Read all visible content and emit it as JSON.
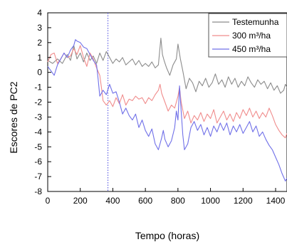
{
  "chart_data": {
    "type": "line",
    "title": "",
    "xlabel": "Tempo (horas)",
    "ylabel": "Escores de PC2",
    "xlim": [
      0,
      1470
    ],
    "ylim": [
      -8,
      4
    ],
    "x_ticks": [
      0,
      200,
      400,
      600,
      800,
      1000,
      1200,
      1400
    ],
    "y_ticks": [
      4,
      3,
      2,
      1,
      0,
      -1,
      -2,
      -3,
      -4,
      -5,
      -6,
      -7,
      -8
    ],
    "grid": false,
    "legend_position": "top-right",
    "vertical_reference_line": {
      "x": 370,
      "color": "#4a4ae0",
      "style": "dotted"
    },
    "series": [
      {
        "name": "Testemunha",
        "color": "#8c8c8c",
        "points": [
          [
            0,
            0.8
          ],
          [
            30,
            0.6
          ],
          [
            60,
            0.9
          ],
          [
            90,
            0.6
          ],
          [
            120,
            1.2
          ],
          [
            140,
            0.8
          ],
          [
            160,
            1.8
          ],
          [
            180,
            0.9
          ],
          [
            200,
            1.3
          ],
          [
            220,
            0.7
          ],
          [
            240,
            1.3
          ],
          [
            260,
            0.8
          ],
          [
            280,
            1.1
          ],
          [
            300,
            0.6
          ],
          [
            320,
            1.3
          ],
          [
            340,
            0.8
          ],
          [
            360,
            1.4
          ],
          [
            380,
            1.0
          ],
          [
            400,
            0.6
          ],
          [
            420,
            0.9
          ],
          [
            440,
            0.7
          ],
          [
            460,
            1.0
          ],
          [
            480,
            0.5
          ],
          [
            500,
            0.7
          ],
          [
            520,
            0.9
          ],
          [
            540,
            0.5
          ],
          [
            560,
            0.8
          ],
          [
            580,
            0.4
          ],
          [
            600,
            0.6
          ],
          [
            620,
            0.4
          ],
          [
            640,
            0.7
          ],
          [
            660,
            0.3
          ],
          [
            680,
            0.5
          ],
          [
            695,
            2.3
          ],
          [
            705,
            1.2
          ],
          [
            715,
            0.8
          ],
          [
            730,
            0.3
          ],
          [
            750,
            -0.2
          ],
          [
            770,
            0.5
          ],
          [
            790,
            0.9
          ],
          [
            800,
            1.9
          ],
          [
            815,
            0.9
          ],
          [
            830,
            0.1
          ],
          [
            850,
            -1.1
          ],
          [
            870,
            -0.4
          ],
          [
            890,
            -0.7
          ],
          [
            910,
            -1.3
          ],
          [
            930,
            -0.6
          ],
          [
            950,
            -0.9
          ],
          [
            970,
            -0.4
          ],
          [
            990,
            -1.0
          ],
          [
            1010,
            -0.7
          ],
          [
            1030,
            -0.1
          ],
          [
            1050,
            -0.8
          ],
          [
            1070,
            -0.5
          ],
          [
            1090,
            -1.0
          ],
          [
            1110,
            -0.3
          ],
          [
            1130,
            -0.8
          ],
          [
            1150,
            -0.4
          ],
          [
            1170,
            -1.0
          ],
          [
            1190,
            -0.6
          ],
          [
            1210,
            -0.9
          ],
          [
            1230,
            -0.3
          ],
          [
            1250,
            -0.7
          ],
          [
            1270,
            -1.0
          ],
          [
            1290,
            -0.5
          ],
          [
            1310,
            -0.8
          ],
          [
            1330,
            -0.6
          ],
          [
            1350,
            -1.1
          ],
          [
            1370,
            -0.7
          ],
          [
            1390,
            -1.2
          ],
          [
            1410,
            -0.9
          ],
          [
            1430,
            -1.4
          ],
          [
            1450,
            -1.2
          ],
          [
            1460,
            -0.8
          ],
          [
            1470,
            -1.0
          ]
        ]
      },
      {
        "name": "300 m³/ha",
        "color": "#f08c8c",
        "points": [
          [
            0,
            0.7
          ],
          [
            20,
            1.2
          ],
          [
            40,
            1.3
          ],
          [
            60,
            0.6
          ],
          [
            80,
            0.9
          ],
          [
            100,
            1.3
          ],
          [
            120,
            1.0
          ],
          [
            140,
            1.1
          ],
          [
            160,
            1.6
          ],
          [
            180,
            1.2
          ],
          [
            200,
            1.8
          ],
          [
            220,
            1.0
          ],
          [
            240,
            0.4
          ],
          [
            260,
            1.3
          ],
          [
            280,
            0.9
          ],
          [
            300,
            0.3
          ],
          [
            320,
            -0.2
          ],
          [
            330,
            -1.0
          ],
          [
            340,
            -1.9
          ],
          [
            360,
            -2.2
          ],
          [
            380,
            -1.9
          ],
          [
            400,
            -2.3
          ],
          [
            420,
            -1.7
          ],
          [
            440,
            -2.1
          ],
          [
            460,
            -1.5
          ],
          [
            480,
            -2.2
          ],
          [
            500,
            -1.8
          ],
          [
            520,
            -1.9
          ],
          [
            540,
            -1.6
          ],
          [
            560,
            -1.8
          ],
          [
            580,
            -1.7
          ],
          [
            600,
            -2.1
          ],
          [
            620,
            -1.7
          ],
          [
            640,
            -1.9
          ],
          [
            660,
            -1.5
          ],
          [
            680,
            -1.2
          ],
          [
            690,
            -0.8
          ],
          [
            700,
            -1.4
          ],
          [
            720,
            -2.0
          ],
          [
            740,
            -2.6
          ],
          [
            760,
            -2.2
          ],
          [
            780,
            -2.4
          ],
          [
            800,
            -1.6
          ],
          [
            810,
            -1.0
          ],
          [
            820,
            -2.0
          ],
          [
            840,
            -3.1
          ],
          [
            860,
            -2.6
          ],
          [
            880,
            -3.4
          ],
          [
            900,
            -2.9
          ],
          [
            920,
            -3.2
          ],
          [
            940,
            -2.7
          ],
          [
            960,
            -3.3
          ],
          [
            980,
            -2.8
          ],
          [
            1000,
            -3.1
          ],
          [
            1020,
            -2.5
          ],
          [
            1040,
            -3.4
          ],
          [
            1060,
            -3.0
          ],
          [
            1080,
            -2.6
          ],
          [
            1100,
            -3.2
          ],
          [
            1120,
            -2.8
          ],
          [
            1140,
            -3.3
          ],
          [
            1160,
            -2.7
          ],
          [
            1180,
            -3.1
          ],
          [
            1200,
            -2.5
          ],
          [
            1220,
            -2.9
          ],
          [
            1240,
            -2.4
          ],
          [
            1260,
            -3.0
          ],
          [
            1280,
            -2.6
          ],
          [
            1300,
            -3.1
          ],
          [
            1320,
            -2.7
          ],
          [
            1340,
            -3.0
          ],
          [
            1360,
            -2.4
          ],
          [
            1380,
            -2.9
          ],
          [
            1400,
            -3.5
          ],
          [
            1420,
            -3.9
          ],
          [
            1440,
            -4.2
          ],
          [
            1460,
            -4.4
          ],
          [
            1470,
            -4.1
          ]
        ]
      },
      {
        "name": "450 m³/ha",
        "color": "#7070e8",
        "points": [
          [
            0,
            0.4
          ],
          [
            20,
            0.1
          ],
          [
            40,
            -0.2
          ],
          [
            60,
            0.5
          ],
          [
            80,
            0.9
          ],
          [
            100,
            1.3
          ],
          [
            120,
            1.0
          ],
          [
            140,
            1.5
          ],
          [
            160,
            1.8
          ],
          [
            170,
            2.2
          ],
          [
            180,
            2.1
          ],
          [
            200,
            2.0
          ],
          [
            220,
            1.7
          ],
          [
            240,
            1.6
          ],
          [
            260,
            1.2
          ],
          [
            280,
            0.8
          ],
          [
            300,
            0.5
          ],
          [
            310,
            -0.5
          ],
          [
            320,
            -1.6
          ],
          [
            340,
            -1.2
          ],
          [
            360,
            -1.5
          ],
          [
            380,
            -0.8
          ],
          [
            400,
            -1.4
          ],
          [
            420,
            -1.3
          ],
          [
            440,
            -2.0
          ],
          [
            460,
            -2.8
          ],
          [
            480,
            -2.4
          ],
          [
            500,
            -2.9
          ],
          [
            520,
            -3.2
          ],
          [
            540,
            -2.8
          ],
          [
            560,
            -3.7
          ],
          [
            580,
            -3.2
          ],
          [
            600,
            -3.9
          ],
          [
            620,
            -4.3
          ],
          [
            640,
            -3.8
          ],
          [
            660,
            -4.8
          ],
          [
            680,
            -5.2
          ],
          [
            690,
            -4.8
          ],
          [
            700,
            -4.4
          ],
          [
            710,
            -3.9
          ],
          [
            720,
            -4.5
          ],
          [
            740,
            -5.0
          ],
          [
            760,
            -4.6
          ],
          [
            780,
            -3.7
          ],
          [
            790,
            -2.6
          ],
          [
            800,
            -3.2
          ],
          [
            810,
            -0.9
          ],
          [
            820,
            -2.6
          ],
          [
            830,
            -4.2
          ],
          [
            840,
            -5.2
          ],
          [
            860,
            -4.8
          ],
          [
            880,
            -3.7
          ],
          [
            900,
            -3.3
          ],
          [
            920,
            -3.9
          ],
          [
            940,
            -3.5
          ],
          [
            960,
            -4.2
          ],
          [
            980,
            -3.7
          ],
          [
            1000,
            -4.3
          ],
          [
            1020,
            -3.6
          ],
          [
            1040,
            -4.0
          ],
          [
            1060,
            -3.4
          ],
          [
            1080,
            -3.9
          ],
          [
            1100,
            -3.4
          ],
          [
            1120,
            -4.2
          ],
          [
            1140,
            -3.6
          ],
          [
            1160,
            -4.0
          ],
          [
            1180,
            -3.5
          ],
          [
            1200,
            -4.1
          ],
          [
            1220,
            -3.7
          ],
          [
            1240,
            -3.3
          ],
          [
            1260,
            -4.0
          ],
          [
            1280,
            -3.6
          ],
          [
            1300,
            -4.3
          ],
          [
            1320,
            -4.0
          ],
          [
            1340,
            -4.5
          ],
          [
            1360,
            -4.9
          ],
          [
            1380,
            -5.2
          ],
          [
            1400,
            -5.7
          ],
          [
            1420,
            -6.2
          ],
          [
            1440,
            -6.8
          ],
          [
            1460,
            -7.3
          ],
          [
            1470,
            -7.1
          ]
        ]
      }
    ]
  }
}
